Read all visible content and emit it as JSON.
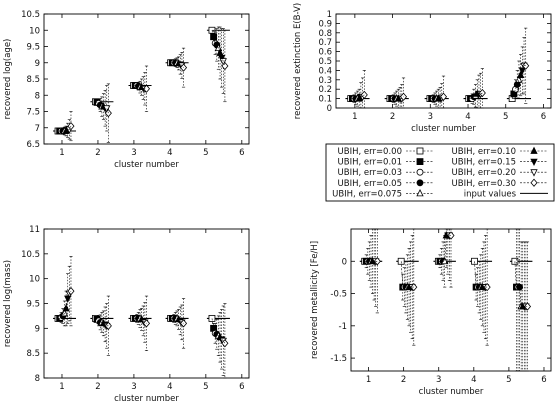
{
  "chart_data": [
    {
      "type": "scatter",
      "xlabel": "cluster number",
      "ylabel": "recovered log(age)",
      "xlim": [
        0.5,
        6.2
      ],
      "ylim": [
        6.5,
        10.5
      ],
      "xticks": [
        "1",
        "2",
        "3",
        "4",
        "5",
        "6"
      ],
      "yticks": [
        "6.5",
        "7",
        "7.5",
        "8",
        "8.5",
        "9",
        "9.5",
        "10",
        "10.5"
      ],
      "input_values": [
        6.9,
        7.8,
        8.3,
        9.0,
        10.0
      ],
      "series": [
        {
          "name": "UBIH, err=0.00",
          "marker": "open-square",
          "values": [
            6.9,
            7.8,
            8.3,
            9.0,
            10.0
          ],
          "errors": [
            0,
            0,
            0,
            0,
            0
          ]
        },
        {
          "name": "UBIH, err=0.01",
          "marker": "filled-square",
          "values": [
            6.9,
            7.78,
            8.3,
            9.0,
            9.8
          ],
          "errors": [
            0.05,
            0.05,
            0.05,
            0.05,
            0.2
          ]
        },
        {
          "name": "UBIH, err=0.03",
          "marker": "open-circle",
          "values": [
            6.9,
            7.75,
            8.3,
            9.0,
            9.6
          ],
          "errors": [
            0.08,
            0.1,
            0.08,
            0.08,
            0.35
          ]
        },
        {
          "name": "UBIH, err=0.05",
          "marker": "filled-circle",
          "values": [
            6.9,
            7.7,
            8.28,
            9.0,
            9.55
          ],
          "errors": [
            0.1,
            0.2,
            0.12,
            0.12,
            0.5
          ]
        },
        {
          "name": "UBIH, err=0.075",
          "marker": "open-triangle",
          "values": [
            6.9,
            7.65,
            8.25,
            9.0,
            9.45
          ],
          "errors": [
            0.12,
            0.3,
            0.18,
            0.15,
            0.65
          ]
        },
        {
          "name": "UBIH, err=0.10",
          "marker": "filled-triangle",
          "values": [
            6.9,
            7.65,
            8.25,
            8.98,
            9.3
          ],
          "errors": [
            0.15,
            0.4,
            0.25,
            0.2,
            0.8
          ]
        },
        {
          "name": "UBIH, err=0.15",
          "marker": "filled-down-triangle",
          "values": [
            6.92,
            7.6,
            8.22,
            8.95,
            9.15
          ],
          "errors": [
            0.22,
            0.55,
            0.35,
            0.3,
            0.9
          ]
        },
        {
          "name": "UBIH, err=0.20",
          "marker": "open-down-triangle",
          "values": [
            6.95,
            7.6,
            8.2,
            8.92,
            9.05
          ],
          "errors": [
            0.3,
            0.7,
            0.5,
            0.4,
            1.0
          ]
        },
        {
          "name": "UBIH, err=0.30",
          "marker": "open-diamond",
          "values": [
            7.05,
            7.45,
            8.2,
            8.85,
            8.9
          ],
          "errors": [
            0.45,
            0.9,
            0.7,
            0.6,
            1.1
          ]
        }
      ]
    },
    {
      "type": "scatter",
      "xlabel": "cluster number",
      "ylabel": "recovered extinction E(B-V)",
      "xlim": [
        0.5,
        6.2
      ],
      "ylim": [
        0,
        1
      ],
      "xticks": [
        "1",
        "2",
        "3",
        "4",
        "5",
        "6"
      ],
      "yticks": [
        "0",
        "0.1",
        "0.2",
        "0.3",
        "0.4",
        "0.5",
        "0.6",
        "0.7",
        "0.8",
        "0.9",
        "1"
      ],
      "input_values": [
        0.1,
        0.1,
        0.1,
        0.1,
        0.1
      ],
      "series": [
        {
          "name": "UBIH, err=0.00",
          "values": [
            0.1,
            0.1,
            0.1,
            0.1,
            0.1
          ],
          "errors": [
            0,
            0,
            0,
            0,
            0
          ]
        },
        {
          "name": "UBIH, err=0.01",
          "values": [
            0.1,
            0.1,
            0.1,
            0.1,
            0.15
          ],
          "errors": [
            0.02,
            0.02,
            0.02,
            0.03,
            0.05
          ]
        },
        {
          "name": "UBIH, err=0.03",
          "values": [
            0.1,
            0.1,
            0.1,
            0.1,
            0.2
          ],
          "errors": [
            0.04,
            0.04,
            0.04,
            0.05,
            0.1
          ]
        },
        {
          "name": "UBIH, err=0.05",
          "values": [
            0.1,
            0.1,
            0.1,
            0.12,
            0.25
          ],
          "errors": [
            0.06,
            0.06,
            0.06,
            0.08,
            0.15
          ]
        },
        {
          "name": "UBIH, err=0.075",
          "values": [
            0.1,
            0.1,
            0.1,
            0.13,
            0.3
          ],
          "errors": [
            0.08,
            0.08,
            0.08,
            0.12,
            0.2
          ]
        },
        {
          "name": "UBIH, err=0.10",
          "values": [
            0.1,
            0.1,
            0.1,
            0.15,
            0.35
          ],
          "errors": [
            0.1,
            0.1,
            0.1,
            0.15,
            0.22
          ]
        },
        {
          "name": "UBIH, err=0.15",
          "values": [
            0.12,
            0.1,
            0.1,
            0.15,
            0.4
          ],
          "errors": [
            0.15,
            0.12,
            0.12,
            0.2,
            0.25
          ]
        },
        {
          "name": "UBIH, err=0.20",
          "values": [
            0.12,
            0.1,
            0.11,
            0.15,
            0.45
          ],
          "errors": [
            0.2,
            0.15,
            0.15,
            0.22,
            0.3
          ]
        },
        {
          "name": "UBIH, err=0.30",
          "values": [
            0.14,
            0.12,
            0.12,
            0.16,
            0.45
          ],
          "errors": [
            0.26,
            0.2,
            0.22,
            0.26,
            0.4
          ]
        }
      ]
    },
    {
      "type": "scatter",
      "xlabel": "cluster number",
      "ylabel": "recovered log(mass)",
      "xlim": [
        0.5,
        6.2
      ],
      "ylim": [
        8,
        11
      ],
      "xticks": [
        "1",
        "2",
        "3",
        "4",
        "5",
        "6"
      ],
      "yticks": [
        "8",
        "8.5",
        "9",
        "9.5",
        "10",
        "10.5",
        "11"
      ],
      "input_values": [
        9.2,
        9.2,
        9.2,
        9.2,
        9.2
      ],
      "series": [
        {
          "name": "UBIH, err=0.00",
          "values": [
            9.2,
            9.2,
            9.2,
            9.2,
            9.2
          ],
          "errors": [
            0,
            0,
            0,
            0,
            0
          ]
        },
        {
          "name": "UBIH, err=0.01",
          "values": [
            9.2,
            9.18,
            9.2,
            9.2,
            9.0
          ],
          "errors": [
            0.05,
            0.05,
            0.05,
            0.05,
            0.1
          ]
        },
        {
          "name": "UBIH, err=0.03",
          "values": [
            9.22,
            9.15,
            9.2,
            9.2,
            8.9
          ],
          "errors": [
            0.1,
            0.1,
            0.08,
            0.08,
            0.2
          ]
        },
        {
          "name": "UBIH, err=0.05",
          "values": [
            9.25,
            9.12,
            9.2,
            9.2,
            8.88
          ],
          "errors": [
            0.15,
            0.15,
            0.12,
            0.12,
            0.3
          ]
        },
        {
          "name": "UBIH, err=0.075",
          "values": [
            9.3,
            9.12,
            9.2,
            9.2,
            8.85
          ],
          "errors": [
            0.25,
            0.2,
            0.18,
            0.15,
            0.4
          ]
        },
        {
          "name": "UBIH, err=0.10",
          "values": [
            9.4,
            9.1,
            9.18,
            9.18,
            8.82
          ],
          "errors": [
            0.35,
            0.25,
            0.22,
            0.2,
            0.5
          ]
        },
        {
          "name": "UBIH, err=0.15",
          "values": [
            9.6,
            9.08,
            9.15,
            9.15,
            8.78
          ],
          "errors": [
            0.5,
            0.35,
            0.3,
            0.28,
            0.6
          ]
        },
        {
          "name": "UBIH, err=0.20",
          "values": [
            9.7,
            9.05,
            9.12,
            9.12,
            8.75
          ],
          "errors": [
            0.55,
            0.45,
            0.4,
            0.35,
            0.7
          ]
        },
        {
          "name": "UBIH, err=0.30",
          "values": [
            9.75,
            9.05,
            9.1,
            9.1,
            8.7
          ],
          "errors": [
            0.7,
            0.6,
            0.55,
            0.5,
            0.8
          ]
        }
      ]
    },
    {
      "type": "scatter",
      "xlabel": "cluster number",
      "ylabel": "recovered metallicity [Fe/H]",
      "xlim": [
        0.5,
        6.2
      ],
      "ylim": [
        -1.7,
        0.5
      ],
      "xticks": [
        "1",
        "2",
        "3",
        "4",
        "5",
        "6"
      ],
      "yticks": [
        "-1.5",
        "-1",
        "-0.5",
        "0"
      ],
      "input_values": [
        0,
        0,
        0,
        0,
        0
      ],
      "series": [
        {
          "name": "UBIH, err=0.00",
          "values": [
            0,
            0,
            0,
            0,
            0
          ],
          "errors": [
            0,
            0,
            0,
            0,
            0
          ]
        },
        {
          "name": "UBIH, err=0.01",
          "values": [
            0,
            -0.4,
            0,
            -0.4,
            -0.4
          ],
          "errors": [
            0.1,
            0.2,
            0.1,
            0.2,
            1.3
          ]
        },
        {
          "name": "UBIH, err=0.03",
          "values": [
            0,
            -0.4,
            0,
            -0.4,
            -0.4
          ],
          "errors": [
            0.2,
            0.3,
            0.2,
            0.3,
            1.3
          ]
        },
        {
          "name": "UBIH, err=0.05",
          "values": [
            0,
            -0.4,
            0,
            -0.4,
            -0.4
          ],
          "errors": [
            0.3,
            0.4,
            0.3,
            0.4,
            1.3
          ]
        },
        {
          "name": "UBIH, err=0.075",
          "values": [
            0,
            -0.4,
            0,
            -0.4,
            -0.7
          ],
          "errors": [
            0.4,
            0.5,
            0.4,
            0.5,
            1.0
          ]
        },
        {
          "name": "UBIH, err=0.10",
          "values": [
            0,
            -0.4,
            0.4,
            -0.4,
            -0.7
          ],
          "errors": [
            0.5,
            0.6,
            0.5,
            0.6,
            1.0
          ]
        },
        {
          "name": "UBIH, err=0.15",
          "values": [
            0,
            -0.4,
            0.4,
            -0.4,
            -0.7
          ],
          "errors": [
            0.6,
            0.7,
            0.6,
            0.7,
            1.0
          ]
        },
        {
          "name": "UBIH, err=0.20",
          "values": [
            0,
            -0.4,
            0.4,
            -0.4,
            -0.7
          ],
          "errors": [
            0.7,
            0.8,
            0.7,
            0.8,
            1.0
          ]
        },
        {
          "name": "UBIH, err=0.30",
          "values": [
            0,
            -0.4,
            0.4,
            -0.4,
            -0.7
          ],
          "errors": [
            0.8,
            0.9,
            0.8,
            0.9,
            1.0
          ]
        }
      ]
    }
  ],
  "legend": {
    "items": [
      {
        "label": "UBIH, err=0.00",
        "marker": "open-square"
      },
      {
        "label": "UBIH, err=0.10",
        "marker": "filled-triangle"
      },
      {
        "label": "UBIH, err=0.01",
        "marker": "filled-square"
      },
      {
        "label": "UBIH, err=0.15",
        "marker": "filled-down-triangle"
      },
      {
        "label": "UBIH, err=0.03",
        "marker": "open-circle"
      },
      {
        "label": "UBIH, err=0.20",
        "marker": "open-down-triangle"
      },
      {
        "label": "UBIH, err=0.05",
        "marker": "filled-circle"
      },
      {
        "label": "UBIH, err=0.30",
        "marker": "open-diamond"
      },
      {
        "label": "UBIH, err=0.075",
        "marker": "open-triangle"
      },
      {
        "label": "input values",
        "marker": "line"
      }
    ]
  }
}
